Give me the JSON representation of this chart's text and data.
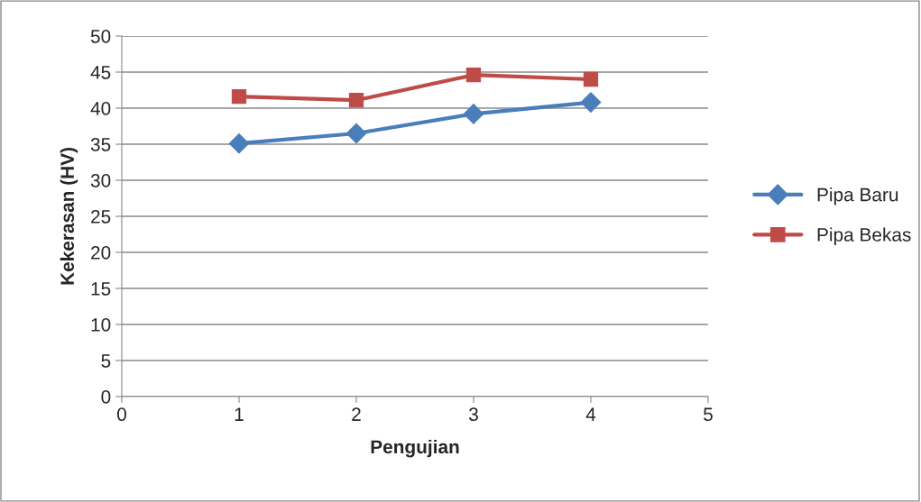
{
  "chart_data": {
    "type": "line",
    "xlabel": "Pengujian",
    "ylabel": "Kekerasan (HV)",
    "x": [
      1,
      2,
      3,
      4
    ],
    "series": [
      {
        "name": "Pipa Baru",
        "color": "#4a7ebb",
        "values": [
          35.1,
          36.5,
          39.2,
          40.8
        ],
        "marker": "diamond"
      },
      {
        "name": "Pipa Bekas",
        "color": "#be4b48",
        "values": [
          41.6,
          41.1,
          44.6,
          44.0
        ],
        "marker": "square"
      }
    ],
    "xlim": [
      0,
      5
    ],
    "xticks": [
      0,
      1,
      2,
      3,
      4,
      5
    ],
    "ylim": [
      0,
      50
    ],
    "yticks": [
      0,
      5,
      10,
      15,
      20,
      25,
      30,
      35,
      40,
      45,
      50
    ],
    "grid": "y",
    "legend": "right",
    "line_style": "solid"
  }
}
